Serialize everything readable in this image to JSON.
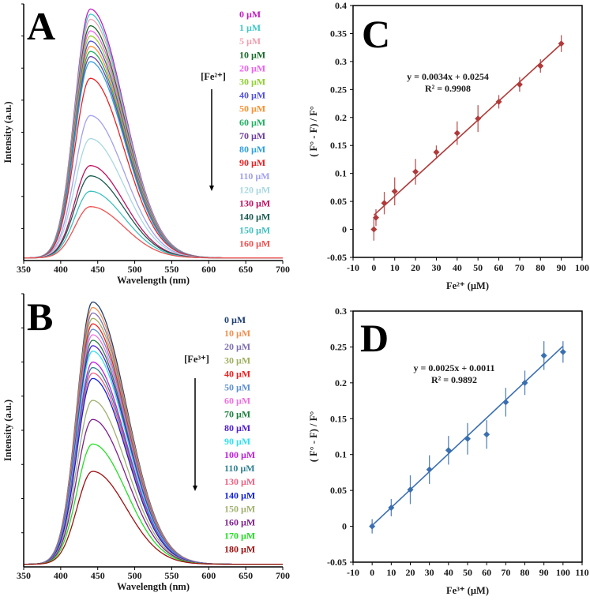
{
  "chart_data": [
    {
      "id": "A",
      "type": "line",
      "panel_label": "A",
      "xlabel": "Wavelength (nm)",
      "ylabel": "Intensity (a.u.)",
      "xlim": [
        350,
        700
      ],
      "xticks": [
        350,
        400,
        450,
        500,
        550,
        600,
        650,
        700
      ],
      "annotation": "[Fe²⁺]",
      "peak_wavelength": 440,
      "legend_placement": "right",
      "series": [
        {
          "name": "0 µM",
          "peak": 0.97,
          "color": "#c020c0"
        },
        {
          "name": "1 µM",
          "peak": 0.95,
          "color": "#40c8c8"
        },
        {
          "name": "5 µM",
          "peak": 0.93,
          "color": "#f0a0b0"
        },
        {
          "name": "10 µM",
          "peak": 0.905,
          "color": "#1a6a2a"
        },
        {
          "name": "20 µM",
          "peak": 0.885,
          "color": "#f060f0"
        },
        {
          "name": "30 µM",
          "peak": 0.865,
          "color": "#90d030"
        },
        {
          "name": "40 µM",
          "peak": 0.845,
          "color": "#5050e0"
        },
        {
          "name": "50 µM",
          "peak": 0.825,
          "color": "#ff9030"
        },
        {
          "name": "60 µM",
          "peak": 0.805,
          "color": "#20b060"
        },
        {
          "name": "70 µM",
          "peak": 0.785,
          "color": "#7040a0"
        },
        {
          "name": "80 µM",
          "peak": 0.765,
          "color": "#30a0e0"
        },
        {
          "name": "90 µM",
          "peak": 0.7,
          "color": "#ee2020"
        },
        {
          "name": "110 µM",
          "peak": 0.555,
          "color": "#a0a0f0"
        },
        {
          "name": "120 µM",
          "peak": 0.465,
          "color": "#a8d8e0"
        },
        {
          "name": "130 µM",
          "peak": 0.36,
          "color": "#c01060"
        },
        {
          "name": "140 µM",
          "peak": 0.32,
          "color": "#1a5a50"
        },
        {
          "name": "150 µM",
          "peak": 0.26,
          "color": "#40c0c0"
        },
        {
          "name": "160 µM",
          "peak": 0.2,
          "color": "#f05050"
        }
      ]
    },
    {
      "id": "B",
      "type": "line",
      "panel_label": "B",
      "xlabel": "Wavelength (nm)",
      "ylabel": "Intensity (a.u.)",
      "xlim": [
        350,
        700
      ],
      "xticks": [
        350,
        400,
        450,
        500,
        550,
        600,
        650,
        700
      ],
      "annotation": "[Fe³⁺]",
      "peak_wavelength": 443,
      "legend_placement": "right",
      "series": [
        {
          "name": "0 µM",
          "peak": 0.96,
          "color": "#1f3f6f"
        },
        {
          "name": "10 µM",
          "peak": 0.94,
          "color": "#f09050"
        },
        {
          "name": "20 µM",
          "peak": 0.92,
          "color": "#8070b0"
        },
        {
          "name": "30 µM",
          "peak": 0.9,
          "color": "#a0b060"
        },
        {
          "name": "40 µM",
          "peak": 0.88,
          "color": "#ee2020"
        },
        {
          "name": "50 µM",
          "peak": 0.86,
          "color": "#6090d0"
        },
        {
          "name": "60 µM",
          "peak": 0.84,
          "color": "#f070e0"
        },
        {
          "name": "70 µM",
          "peak": 0.82,
          "color": "#208040"
        },
        {
          "name": "80 µM",
          "peak": 0.8,
          "color": "#5020d0"
        },
        {
          "name": "90 µM",
          "peak": 0.78,
          "color": "#30e0f0"
        },
        {
          "name": "100 µM",
          "peak": 0.74,
          "color": "#c020e0"
        },
        {
          "name": "110 µM",
          "peak": 0.72,
          "color": "#308090"
        },
        {
          "name": "130 µM",
          "peak": 0.7,
          "color": "#f06080"
        },
        {
          "name": "140 µM",
          "peak": 0.68,
          "color": "#1020e0"
        },
        {
          "name": "150 µM",
          "peak": 0.6,
          "color": "#a0b070"
        },
        {
          "name": "160 µM",
          "peak": 0.53,
          "color": "#802090"
        },
        {
          "name": "170 µM",
          "peak": 0.44,
          "color": "#20e020"
        },
        {
          "name": "180 µM",
          "peak": 0.34,
          "color": "#a01010"
        }
      ]
    },
    {
      "id": "C",
      "type": "scatter",
      "panel_label": "C",
      "xlabel": "Fe²⁺ (µM)",
      "ylabel": "( F° - F) / F°",
      "xlim": [
        -10,
        100
      ],
      "ylim": [
        -0.05,
        0.4
      ],
      "xticks": [
        -10,
        0,
        10,
        20,
        30,
        40,
        50,
        60,
        70,
        80,
        90,
        100
      ],
      "yticks": [
        -0.05,
        0,
        0.05,
        0.1,
        0.15,
        0.2,
        0.25,
        0.3,
        0.35,
        0.4
      ],
      "ytick_labels": [
        "-0.05",
        "0",
        "0.05",
        "0.1",
        "0.15",
        "0.2",
        "0.25",
        "0.3",
        "0.35",
        "0.4"
      ],
      "color": "#b03a3a",
      "x": [
        0,
        1,
        5,
        10,
        20,
        30,
        40,
        50,
        60,
        70,
        80,
        90
      ],
      "y": [
        0,
        0.021,
        0.047,
        0.068,
        0.103,
        0.138,
        0.172,
        0.198,
        0.228,
        0.259,
        0.292,
        0.332
      ],
      "error": [
        0.02,
        0.015,
        0.02,
        0.025,
        0.023,
        0.012,
        0.021,
        0.024,
        0.012,
        0.013,
        0.012,
        0.015
      ],
      "fit": {
        "slope": 0.0034,
        "intercept": 0.0254,
        "x_range": [
          0,
          90
        ]
      },
      "equation": "y = 0.0034x + 0.0254",
      "r_squared": "R² = 0.9908"
    },
    {
      "id": "D",
      "type": "scatter",
      "panel_label": "D",
      "xlabel": "Fe³⁺ (µM)",
      "ylabel": "( F° - F) / F°",
      "xlim": [
        -10,
        110
      ],
      "ylim": [
        -0.05,
        0.3
      ],
      "xticks": [
        -10,
        0,
        10,
        20,
        30,
        40,
        50,
        60,
        70,
        80,
        90,
        100,
        110
      ],
      "yticks": [
        -0.05,
        0,
        0.05,
        0.1,
        0.15,
        0.2,
        0.25,
        0.3
      ],
      "ytick_labels": [
        "-0.05",
        "0",
        "0.05",
        "0.1",
        "0.15",
        "0.2",
        "0.25",
        "0.3"
      ],
      "color": "#3a6fb0",
      "x": [
        0,
        10,
        20,
        30,
        40,
        50,
        60,
        70,
        80,
        90,
        100
      ],
      "y": [
        0,
        0.026,
        0.051,
        0.079,
        0.106,
        0.122,
        0.128,
        0.173,
        0.2,
        0.238,
        0.243
      ],
      "error": [
        0.01,
        0.012,
        0.02,
        0.02,
        0.02,
        0.022,
        0.02,
        0.02,
        0.017,
        0.02,
        0.015
      ],
      "fit": {
        "slope": 0.0025,
        "intercept": 0.0011,
        "x_range": [
          0,
          100
        ]
      },
      "equation": "y = 0.0025x + 0.0011",
      "r_squared": "R² = 0.9892"
    }
  ]
}
